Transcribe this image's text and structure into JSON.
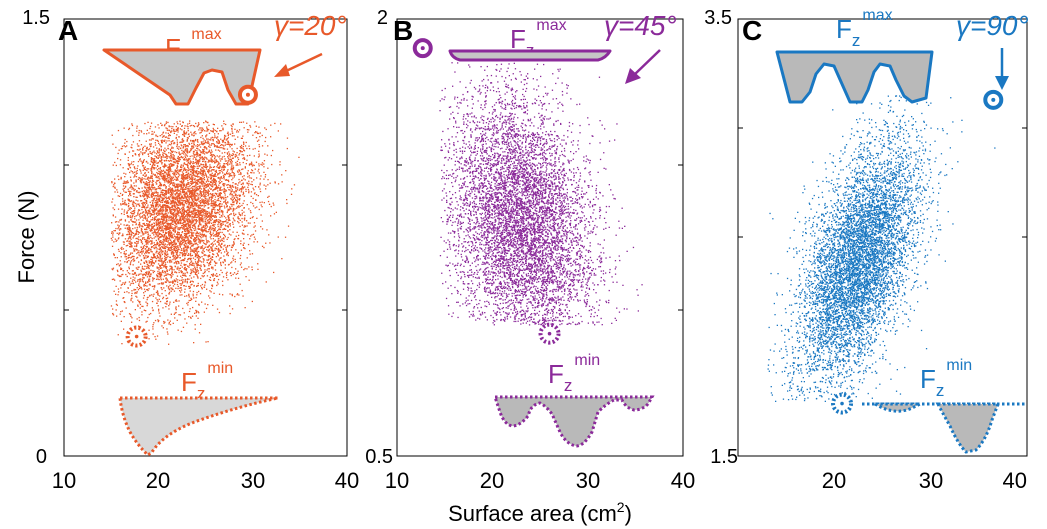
{
  "figure": {
    "xlabel": "Surface area (cm",
    "xlabel_sup": "2",
    "xlabel_end": ")",
    "ylabel": "Force (N)"
  },
  "chart_data": [
    {
      "type": "scatter",
      "panel_label": "A",
      "color": "#e8592a",
      "xlim": [
        10,
        40
      ],
      "ylim": [
        0,
        1.5
      ],
      "xticks": [
        "10",
        "20",
        "30",
        "40"
      ],
      "yticks": [
        "0",
        "1.5"
      ],
      "minor_yticks": [
        0.5,
        1.0
      ],
      "gamma": "γ=20°",
      "fmax_label": "F",
      "fmax_sub": "z",
      "fmax_sup": "max",
      "fmin_label": "F",
      "fmin_sub": "z",
      "fmin_sup": "min",
      "cloud": {
        "cx": 22.5,
        "cy": 0.85,
        "sx": 3.8,
        "sy": 0.17,
        "rho": 0.25,
        "n": 6500,
        "x_range": [
          15,
          38
        ],
        "y_range": [
          0.38,
          1.15
        ]
      },
      "fmax_point": [
        29.5,
        1.24
      ],
      "fmin_point": [
        17.7,
        0.41
      ]
    },
    {
      "type": "scatter",
      "panel_label": "B",
      "color": "#8b2a9a",
      "xlim": [
        10,
        40
      ],
      "ylim": [
        0.5,
        2
      ],
      "xticks": [
        "10",
        "20",
        "30",
        "40"
      ],
      "yticks": [
        "0.5",
        "2"
      ],
      "minor_yticks": [
        1.0,
        1.5
      ],
      "gamma": "γ=45°",
      "fmax_label": "F",
      "fmax_sub": "z",
      "fmax_sup": "max",
      "fmin_label": "F",
      "fmin_sub": "z",
      "fmin_sup": "min",
      "cloud": {
        "cx": 23,
        "cy": 1.3,
        "sx": 3.8,
        "sy": 0.22,
        "rho": -0.25,
        "n": 6500,
        "x_range": [
          14.5,
          36
        ],
        "y_range": [
          0.95,
          1.85
        ]
      },
      "fmax_point": [
        12.7,
        1.9
      ],
      "fmin_point": [
        26,
        0.92
      ]
    },
    {
      "type": "scatter",
      "panel_label": "C",
      "color": "#1a78c2",
      "xlim": [
        10,
        40
      ],
      "ylim": [
        1.5,
        3.5
      ],
      "xticks": [
        "10",
        "20",
        "30",
        "40"
      ],
      "yticks": [
        "1.5",
        "3.5"
      ],
      "minor_yticks": [
        2.5,
        3.0
      ],
      "gamma": "γ=90°",
      "fmax_label": "F",
      "fmax_sub": "z",
      "fmax_sup": "max",
      "fmin_label": "F",
      "fmin_sub": "z",
      "fmin_sup": "min",
      "cloud": {
        "cx": 22.5,
        "cy": 2.38,
        "sx": 3.2,
        "sy": 0.28,
        "rho": 0.55,
        "n": 6500,
        "x_range": [
          13,
          38
        ],
        "y_range": [
          1.75,
          3.15
        ]
      },
      "fmax_point": [
        36.5,
        3.13
      ],
      "fmin_point": [
        20.8,
        1.74
      ]
    }
  ]
}
